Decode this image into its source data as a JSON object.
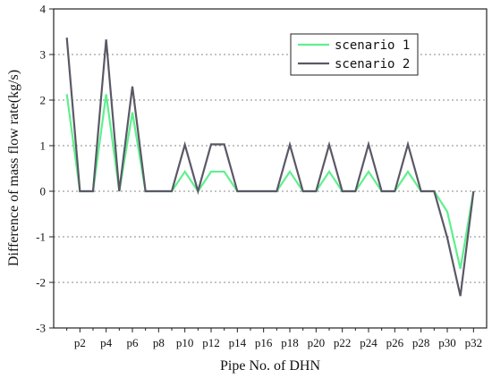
{
  "chart_data": {
    "type": "line",
    "xlabel": "Pipe No. of DHN",
    "ylabel": "Difference of mass flow rate(kg/s)",
    "ylim": [
      -3,
      4
    ],
    "yticks": [
      -3,
      -2,
      -1,
      0,
      1,
      2,
      3,
      4
    ],
    "xlim": [
      0,
      33
    ],
    "x_tick_labels": [
      "p2",
      "p4",
      "p6",
      "p8",
      "p10",
      "p12",
      "p14",
      "p16",
      "p18",
      "p20",
      "p22",
      "p24",
      "p26",
      "p28",
      "p30",
      "p32"
    ],
    "grid": "horizontal dotted",
    "legend_position": "top-right",
    "x": [
      1,
      2,
      3,
      4,
      5,
      6,
      7,
      8,
      9,
      10,
      11,
      12,
      13,
      14,
      15,
      16,
      17,
      18,
      19,
      20,
      21,
      22,
      23,
      24,
      25,
      26,
      27,
      28,
      29,
      30,
      31,
      32
    ],
    "series": [
      {
        "name": "scenario 1",
        "color": "#5ef08e",
        "values": [
          2.13,
          0,
          0,
          2.13,
          0,
          1.73,
          0,
          0,
          0,
          0.43,
          0,
          0.43,
          0.43,
          0,
          0,
          0,
          0,
          0.43,
          0,
          0,
          0.43,
          0,
          0,
          0.43,
          0,
          0,
          0.43,
          0,
          0,
          -0.45,
          -1.7,
          0
        ]
      },
      {
        "name": "scenario 2",
        "color": "#5b5866",
        "values": [
          3.37,
          0,
          0,
          3.33,
          0,
          2.3,
          0,
          0,
          0,
          1.02,
          0,
          1.03,
          1.03,
          0,
          0,
          0,
          0,
          1.02,
          0,
          0,
          1.02,
          0,
          0,
          1.03,
          0,
          0,
          1.03,
          0,
          0,
          -1.02,
          -2.3,
          0
        ]
      }
    ]
  }
}
